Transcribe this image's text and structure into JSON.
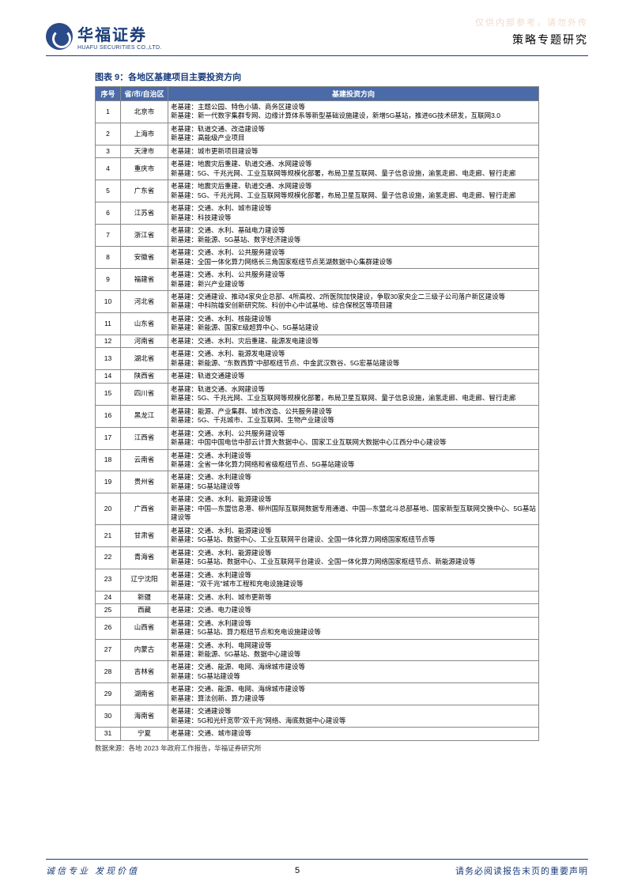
{
  "watermark": "仅供内部参考，请勿外传",
  "header": {
    "logo_cn": "华福证券",
    "logo_en": "HUAFU SECURITIES CO.,LTD.",
    "doc_type": "策略专题研究"
  },
  "figure": {
    "title": "图表 9：各地区基建项目主要投资方向",
    "columns": [
      "序号",
      "省/市/自治区",
      "基建投资方向"
    ],
    "col_widths": [
      "32px",
      "60px",
      "auto"
    ],
    "header_bg": "#4a6aa8",
    "header_fg": "#ffffff",
    "border_color": "#888888",
    "rows": [
      {
        "idx": "1",
        "region": "北京市",
        "dir": "老基建：主题公园、特色小镇、商务区建设等\n新基建：新一代数字集群专网、边缘计算体系等新型基础设施建设，新增5G基站，推进6G技术研发，互联网3.0"
      },
      {
        "idx": "2",
        "region": "上海市",
        "dir": "老基建：轨道交通、改造建设等\n新基建：高能级产业项目"
      },
      {
        "idx": "3",
        "region": "天津市",
        "dir": "老基建：城市更新项目建设等"
      },
      {
        "idx": "4",
        "region": "重庆市",
        "dir": "老基建：地震灾后重建、轨道交通、水网建设等\n新基建：5G、千兆光网、工业互联网等规模化部署，布局卫星互联网、量子信息设施，渝氢走廊、电走廊、智行走廊"
      },
      {
        "idx": "5",
        "region": "广东省",
        "dir": "老基建：地震灾后重建、轨道交通、水网建设等\n新基建：5G、千兆光网、工业互联网等规模化部署，布局卫星互联网、量子信息设施，渝氢走廊、电走廊、智行走廊"
      },
      {
        "idx": "6",
        "region": "江苏省",
        "dir": "老基建：交通、水利、城市建设等\n新基建：科技建设等"
      },
      {
        "idx": "7",
        "region": "浙江省",
        "dir": "老基建：交通、水利、基础电力建设等\n新基建：新能源、5G基站、数字经济建设等"
      },
      {
        "idx": "8",
        "region": "安徽省",
        "dir": "老基建：交通、水利、公共服务建设等\n新基建：全国一体化算力网络长三角国家枢纽节点芜湖数据中心集群建设等"
      },
      {
        "idx": "9",
        "region": "福建省",
        "dir": "老基建：交通、水利、公共服务建设等\n新基建：新兴产业建设等"
      },
      {
        "idx": "10",
        "region": "河北省",
        "dir": "老基建：交通建设、推动4家央企总部、4所高校、2所医院加快建设，争取30家央企二三级子公司落户新区建设等\n新基建：中科院雄安创新研究院、科创中心中试基地、综合保税区等项目建"
      },
      {
        "idx": "11",
        "region": "山东省",
        "dir": "老基建：交通、水利、核能建设等\n新基建：新能源、国家E级超算中心、5G基站建设"
      },
      {
        "idx": "12",
        "region": "河南省",
        "dir": "老基建：交通、水利、灾后重建、能源发电建设等"
      },
      {
        "idx": "13",
        "region": "湖北省",
        "dir": "老基建：交通、水利、能源发电建设等\n新基建：新能源、\"东数西算\"中部枢纽节点、中金武汉数谷、5G宏基站建设等"
      },
      {
        "idx": "14",
        "region": "陕西省",
        "dir": "老基建：轨道交通建设等"
      },
      {
        "idx": "15",
        "region": "四川省",
        "dir": "老基建：轨道交通、水网建设等\n新基建：5G、千兆光网、工业互联网等规模化部署，布局卫星互联网、量子信息设施，渝氢走廊、电走廊、智行走廊"
      },
      {
        "idx": "16",
        "region": "黑龙江",
        "dir": "老基建：能源、产业集群、城市改造、公共服务建设等\n新基建：5G、千兆城市、工业互联网、生物产业建设等"
      },
      {
        "idx": "17",
        "region": "江西省",
        "dir": "老基建：交通、水利、公共服务建设等\n新基建：中国中国电信中部云计算大数据中心、国家工业互联网大数据中心江西分中心建设等"
      },
      {
        "idx": "18",
        "region": "云南省",
        "dir": "老基建：交通、水利建设等\n新基建：全省一体化算力网络和省级枢纽节点、5G基站建设等"
      },
      {
        "idx": "19",
        "region": "贵州省",
        "dir": "老基建：交通、水利建设等\n新基建：5G基站建设等"
      },
      {
        "idx": "20",
        "region": "广西省",
        "dir": "老基建：交通、水利、能源建设等\n新基建：中国—东盟信息港、柳州国际互联网数据专用通道、中国—东盟北斗总部基地、国家新型互联网交换中心、5G基站建设等"
      },
      {
        "idx": "21",
        "region": "甘肃省",
        "dir": "老基建：交通、水利、能源建设等\n新基建：5G基站、数据中心、工业互联网平台建设、全国一体化算力网络国家枢纽节点等"
      },
      {
        "idx": "22",
        "region": "青海省",
        "dir": "老基建：交通、水利、能源建设等\n新基建：5G基站、数据中心、工业互联网平台建设、全国一体化算力网络国家枢纽节点、新能源建设等"
      },
      {
        "idx": "23",
        "region": "辽宁沈阳",
        "dir": "老基建：交通、水利建设等\n新基建：\"双千兆\"城市工程和充电设施建设等"
      },
      {
        "idx": "24",
        "region": "新疆",
        "dir": "老基建：交通、水利、城市更新等"
      },
      {
        "idx": "25",
        "region": "西藏",
        "dir": "老基建：交通、电力建设等"
      },
      {
        "idx": "26",
        "region": "山西省",
        "dir": "老基建：交通、水利建设等\n新基建：5G基站、算力枢纽节点和充电设施建设等"
      },
      {
        "idx": "27",
        "region": "内蒙古",
        "dir": "老基建：交通、水利、电网建设等\n新基建：新能源、5G基站、数据中心建设等"
      },
      {
        "idx": "28",
        "region": "吉林省",
        "dir": "老基建：交通、能源、电网、海绵城市建设等\n新基建：5G基站建设等"
      },
      {
        "idx": "29",
        "region": "湖南省",
        "dir": "老基建：交通、能源、电网、海绵城市建设等\n新基建：算法创新、算力建设等"
      },
      {
        "idx": "30",
        "region": "海南省",
        "dir": "老基建：交通建设等\n新基建：5G和光纤宽带\"双千兆\"网络、海底数据中心建设等"
      },
      {
        "idx": "31",
        "region": "宁夏",
        "dir": "老基建：交通、城市建设等"
      }
    ],
    "source": "数据来源：各地 2023 年政府工作报告，华福证券研究所"
  },
  "footer": {
    "slogan": "诚信专业  发现价值",
    "page": "5",
    "disclaimer": "请务必阅读报告末页的重要声明"
  },
  "colors": {
    "brand": "#1a3c7a",
    "header_bg": "#4a6aa8",
    "watermark": "#f2d9cc"
  }
}
